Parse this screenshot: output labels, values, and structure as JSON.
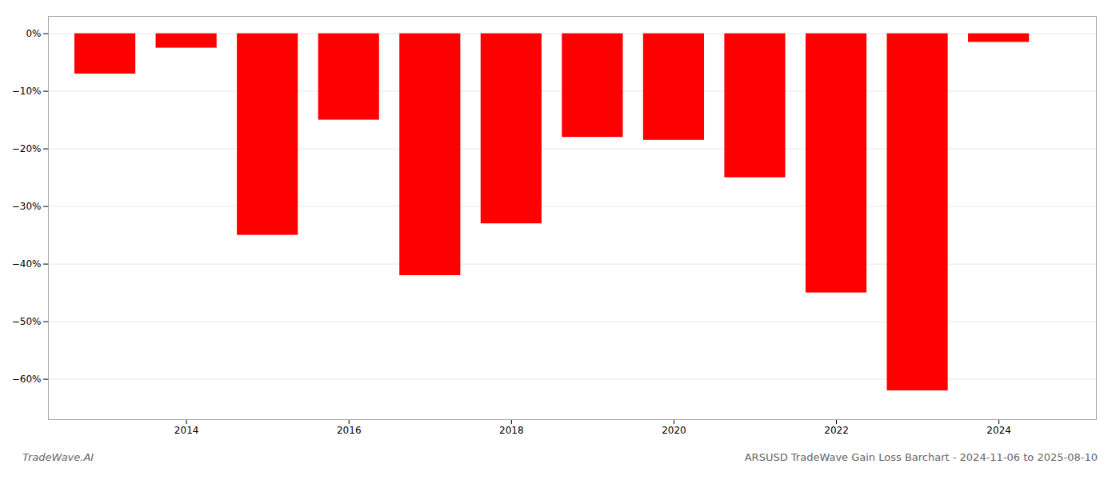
{
  "chart_data": {
    "type": "bar",
    "title": "ARSUSD TradeWave Gain Loss Barchart - 2024-11-06 to 2025-08-10",
    "annotations": [
      "TradeWave.AI"
    ],
    "x": [
      2013,
      2014,
      2015,
      2016,
      2017,
      2018,
      2019,
      2020,
      2021,
      2022,
      2023,
      2024
    ],
    "values": [
      -7.0,
      -2.5,
      -35.0,
      -15.0,
      -42.0,
      -33.0,
      -18.0,
      -18.5,
      -25.0,
      -45.0,
      -62.0,
      -1.5
    ],
    "color": "#ff0000",
    "xlim": [
      2012.3,
      2025.2
    ],
    "xticks": [
      2014,
      2016,
      2018,
      2020,
      2022,
      2024
    ],
    "ylim": [
      -67,
      3
    ],
    "yticks": [
      {
        "value": 0,
        "label": "0%"
      },
      {
        "value": -10,
        "label": "−10%"
      },
      {
        "value": -20,
        "label": "−20%"
      },
      {
        "value": -30,
        "label": "−30%"
      },
      {
        "value": -40,
        "label": "−40%"
      },
      {
        "value": -50,
        "label": "−50%"
      },
      {
        "value": -60,
        "label": "−60%"
      }
    ],
    "grid": true
  }
}
